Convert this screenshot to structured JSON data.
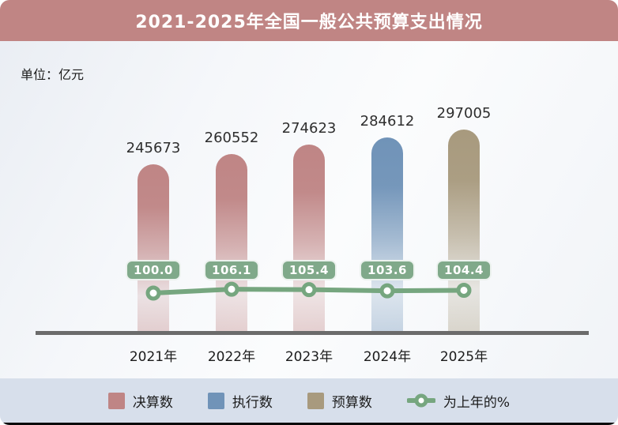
{
  "chart_data": {
    "type": "bar",
    "title": "2021-2025年全国一般公共预算支出情况",
    "unit_label": "单位：亿元",
    "categories": [
      "2021年",
      "2022年",
      "2023年",
      "2024年",
      "2025年"
    ],
    "bar_series_by_category": [
      0,
      0,
      0,
      1,
      2
    ],
    "series": [
      {
        "name": "决算数",
        "type": "bar",
        "color": "#bf8585",
        "values": [
          245673,
          260552,
          274623,
          null,
          null
        ]
      },
      {
        "name": "执行数",
        "type": "bar",
        "color": "#7093b8",
        "values": [
          null,
          null,
          null,
          284612,
          null
        ]
      },
      {
        "name": "预算数",
        "type": "bar",
        "color": "#a89a7e",
        "values": [
          null,
          null,
          null,
          null,
          297005
        ]
      },
      {
        "name": "为上年的%",
        "type": "line",
        "color": "#76a67f",
        "values": [
          100.0,
          106.1,
          105.4,
          103.6,
          104.4
        ]
      }
    ],
    "percent_labels": [
      "100.0",
      "106.1",
      "105.4",
      "103.6",
      "104.4"
    ],
    "legend_position": "bottom",
    "grid": false,
    "ylim": [
      0,
      320000
    ]
  },
  "colors": {
    "title_bg": "#c08584",
    "title_text": "#ffffff",
    "line": "#76a67f",
    "pill_bg": "#80a98a",
    "legend_bg": "#d7dfeb",
    "axis": "#6b6b6b",
    "value_text": "#2e2e2e"
  }
}
